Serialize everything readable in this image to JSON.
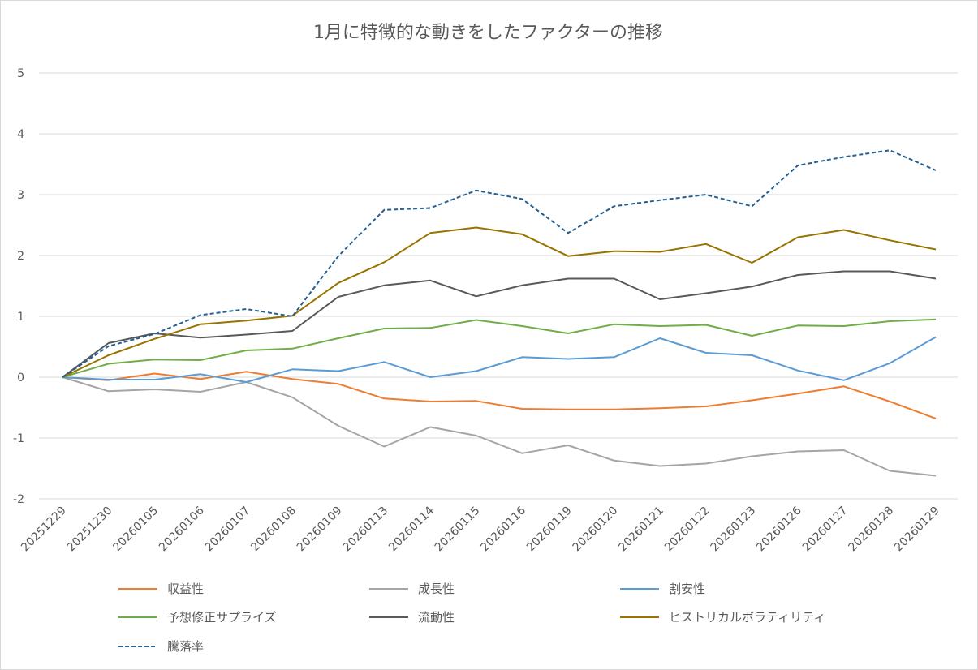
{
  "chart_data": {
    "type": "line",
    "title": "1月に特徴的な動きをしたファクターの推移",
    "xlabel": "",
    "ylabel": "",
    "ylim": [
      -2,
      5
    ],
    "yticks": [
      5,
      4,
      3,
      2,
      1,
      0,
      -1,
      -2
    ],
    "grid": true,
    "legend_position": "bottom",
    "categories": [
      "20251229",
      "20251230",
      "20260105",
      "20260106",
      "20260107",
      "20260108",
      "20260109",
      "20260113",
      "20260114",
      "20260115",
      "20260116",
      "20260119",
      "20260120",
      "20260121",
      "20260122",
      "20260123",
      "20260126",
      "20260127",
      "20260128",
      "20260129"
    ],
    "series": [
      {
        "name": "収益性",
        "color": "#ed7d31",
        "dashed": false,
        "values": [
          0,
          -0.05,
          0.06,
          -0.03,
          0.09,
          -0.03,
          -0.11,
          -0.35,
          -0.4,
          -0.39,
          -0.52,
          -0.53,
          -0.53,
          -0.51,
          -0.48,
          -0.38,
          -0.27,
          -0.15,
          -0.4,
          -0.68
        ]
      },
      {
        "name": "成長性",
        "color": "#a5a5a5",
        "dashed": false,
        "values": [
          0,
          -0.23,
          -0.2,
          -0.24,
          -0.08,
          -0.33,
          -0.8,
          -1.14,
          -0.82,
          -0.96,
          -1.25,
          -1.12,
          -1.37,
          -1.46,
          -1.42,
          -1.3,
          -1.22,
          -1.2,
          -1.54,
          -1.62
        ]
      },
      {
        "name": "割安性",
        "color": "#5b9bd5",
        "dashed": false,
        "values": [
          0,
          -0.04,
          -0.04,
          0.05,
          -0.08,
          0.13,
          0.1,
          0.25,
          0.0,
          0.1,
          0.33,
          0.3,
          0.33,
          0.64,
          0.4,
          0.36,
          0.11,
          -0.05,
          0.23,
          0.66
        ]
      },
      {
        "name": "予想修正サプライズ",
        "color": "#70ad47",
        "dashed": false,
        "values": [
          0,
          0.22,
          0.29,
          0.28,
          0.44,
          0.47,
          0.64,
          0.8,
          0.81,
          0.94,
          0.84,
          0.72,
          0.87,
          0.84,
          0.86,
          0.68,
          0.85,
          0.84,
          0.92,
          0.95
        ]
      },
      {
        "name": "流動性",
        "color": "#595959",
        "dashed": false,
        "values": [
          0,
          0.56,
          0.72,
          0.65,
          0.7,
          0.76,
          1.32,
          1.51,
          1.59,
          1.33,
          1.51,
          1.62,
          1.62,
          1.28,
          1.38,
          1.49,
          1.68,
          1.74,
          1.74,
          1.62
        ]
      },
      {
        "name": "ヒストリカルボラティリティ",
        "color": "#997300",
        "dashed": false,
        "values": [
          0,
          0.36,
          0.63,
          0.87,
          0.93,
          1.01,
          1.55,
          1.89,
          2.37,
          2.46,
          2.35,
          1.99,
          2.07,
          2.06,
          2.19,
          1.88,
          2.3,
          2.42,
          2.25,
          2.1
        ]
      },
      {
        "name": "騰落率",
        "color": "#255e91",
        "dashed": true,
        "values": [
          0,
          0.51,
          0.71,
          1.02,
          1.12,
          1.0,
          1.99,
          2.75,
          2.78,
          3.07,
          2.93,
          2.37,
          2.81,
          2.91,
          3.0,
          2.81,
          3.48,
          3.62,
          3.73,
          3.4
        ]
      }
    ]
  }
}
